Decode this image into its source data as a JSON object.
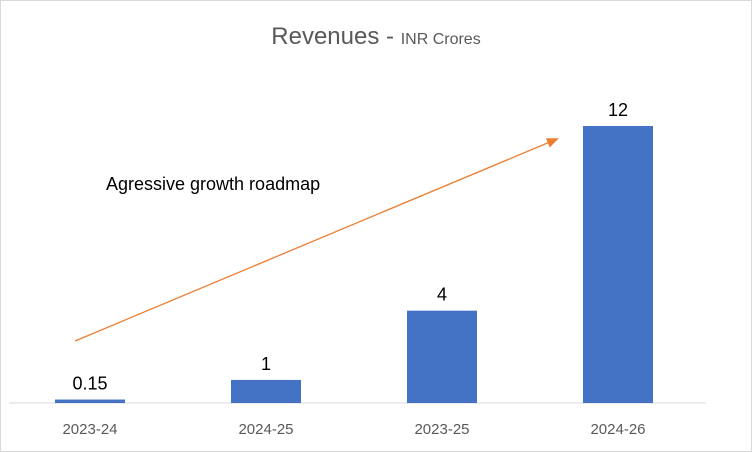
{
  "chart_data": {
    "type": "bar",
    "title": "Revenues",
    "title_separator": " - ",
    "subtitle": "INR Crores",
    "categories": [
      "2023-24",
      "2024-25",
      "2023-25",
      "2024-26"
    ],
    "values": [
      0.15,
      1,
      4,
      12
    ],
    "data_labels": [
      "0.15",
      "1",
      "4",
      "12"
    ],
    "xlabel": "",
    "ylabel": "",
    "ylim": [
      0,
      12
    ],
    "grid": false,
    "legend": "none",
    "annotation": {
      "text": "Agressive growth roadmap",
      "arrow": "upward trend from first to last category"
    },
    "colors": {
      "bar": "#4472C4",
      "arrow": "#ED7D31",
      "axis": "#D9D9D9",
      "tick_text": "#595959",
      "label_text": "#000000"
    }
  }
}
